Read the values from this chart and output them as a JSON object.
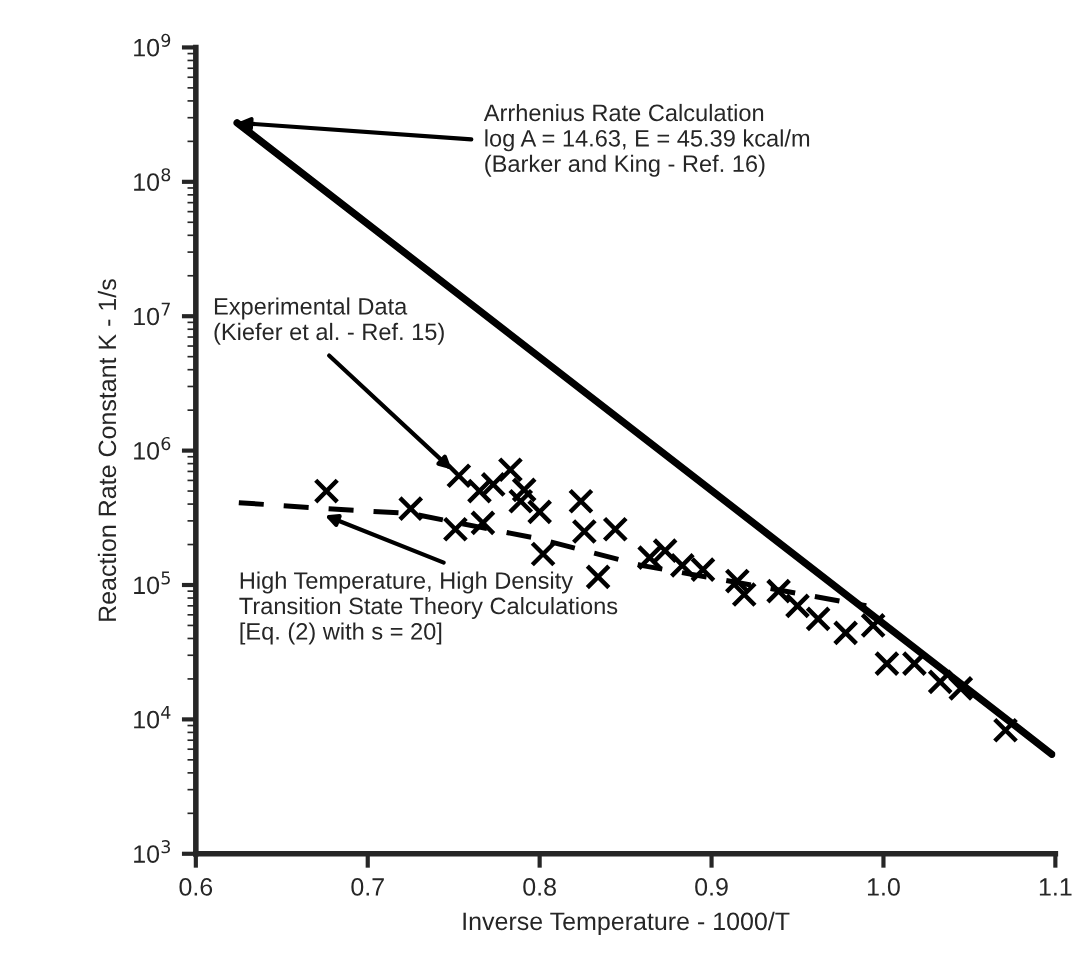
{
  "chart_data": {
    "type": "line",
    "xlabel": "Inverse Temperature - 1000/T",
    "ylabel": "Reaction Rate Constant K - 1/s",
    "log": "y",
    "grid": false,
    "xlim": [
      0.6,
      1.1
    ],
    "xticks": [
      0.6,
      0.7,
      0.8,
      0.9,
      {
        "value": 1.0,
        "label": "1.0"
      },
      {
        "value": 1.1,
        "label": "1.1"
      }
    ],
    "ylim": [
      1000,
      1000000000
    ],
    "yticks": [
      {
        "value": 1000,
        "label": "10$^{3}$"
      },
      {
        "value": 10000,
        "label": "10$^{4}$"
      },
      {
        "value": 100000,
        "label": "10$^{5}$"
      },
      {
        "value": 1000000,
        "label": "10$^{6}$"
      },
      {
        "value": 10000000,
        "label": "10$^{7}$"
      },
      {
        "value": 100000000,
        "label": "10$^{8}$"
      },
      {
        "value": 1000000000,
        "label": "10$^{9}$"
      }
    ],
    "series": [
      {
        "color": "#000000",
        "line_style": "solid",
        "marker": "none",
        "x": [
          0.624,
          1.098
        ],
        "values": [
          275000000,
          5500
        ]
      },
      {
        "color": "#000000",
        "line_style": "dashed",
        "marker": "none",
        "x": [
          0.625,
          0.675,
          0.725,
          0.8,
          0.859,
          0.923,
          0.99
        ],
        "values": [
          410000,
          370000,
          340000,
          220000,
          140000,
          100000,
          70000
        ]
      },
      {
        "type": "scatter",
        "color": "#000000",
        "marker": "cross",
        "x": [
          0.676,
          0.725,
          0.751,
          0.753,
          0.765,
          0.767,
          0.773,
          0.783,
          0.789,
          0.791,
          0.8,
          0.802,
          0.824,
          0.826,
          0.834,
          0.844,
          0.864,
          0.873,
          0.883,
          0.895,
          0.915,
          0.919,
          0.939,
          0.95,
          0.962,
          0.978,
          0.994,
          1.002,
          1.018,
          1.033,
          1.045,
          1.071
        ],
        "values": [
          500000,
          370000,
          260000,
          650000,
          500000,
          290000,
          560000,
          720000,
          420000,
          510000,
          350000,
          170000,
          420000,
          250000,
          115000,
          260000,
          160000,
          180000,
          140000,
          130000,
          107000,
          85000,
          90000,
          70000,
          56000,
          44000,
          50000,
          26000,
          26000,
          19000,
          17000,
          8300
        ]
      }
    ],
    "annotations": [
      {
        "text": "Arrhenius Rate Calculation\nlog A = 14.63, E = 45.39 kcal/m\n(Barker and King - Ref. 16)",
        "x": 0.624,
        "y": 275000000
      },
      {
        "text": "Experimental Data\n(Kiefer et al. - Ref. 15)",
        "x": 0.749,
        "y": 720000
      },
      {
        "text": "High Temperature, High Density\nTransition State Theory Calculations\n[Eq. (2) with s = 20]",
        "x": 0.675,
        "y": 330000
      }
    ]
  }
}
